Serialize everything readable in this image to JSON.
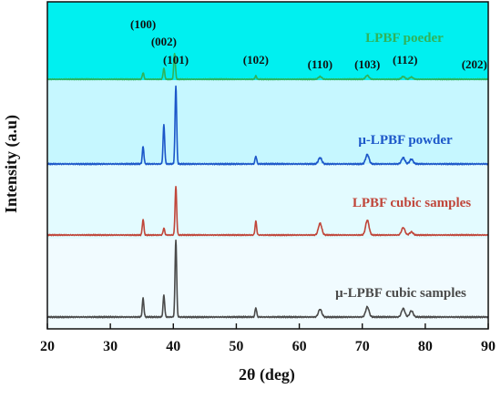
{
  "chart_data": {
    "type": "line",
    "title": "",
    "xlabel": "2θ (deg)",
    "ylabel": "Intensity (a.u)",
    "xlim": [
      20,
      90
    ],
    "xticks": [
      20,
      30,
      40,
      50,
      60,
      70,
      80,
      90
    ],
    "y_ticks_shown": false,
    "grid": false,
    "legend": "none; series names written next to each trace",
    "background_bands": [
      "#00f0f0",
      "#c6f7ff",
      "#e3fbff",
      "#f1fbff"
    ],
    "series": [
      {
        "name": "LPBF poeder",
        "color": "#2fb35a",
        "peaks": [
          {
            "x": 35.2,
            "height": 0.12
          },
          {
            "x": 38.5,
            "height": 0.2
          },
          {
            "x": 40.2,
            "height": 0.48
          },
          {
            "x": 53.1,
            "height": 0.06
          },
          {
            "x": 63.3,
            "height": 0.05
          },
          {
            "x": 70.8,
            "height": 0.07
          },
          {
            "x": 76.5,
            "height": 0.05
          },
          {
            "x": 77.8,
            "height": 0.04
          }
        ]
      },
      {
        "name": "μ-LPBF powder",
        "color": "#1c57c9",
        "peaks": [
          {
            "x": 35.2,
            "height": 0.22
          },
          {
            "x": 38.5,
            "height": 0.5
          },
          {
            "x": 40.4,
            "height": 1.0
          },
          {
            "x": 53.1,
            "height": 0.1
          },
          {
            "x": 63.3,
            "height": 0.08
          },
          {
            "x": 70.8,
            "height": 0.12
          },
          {
            "x": 76.5,
            "height": 0.08
          },
          {
            "x": 77.8,
            "height": 0.06
          }
        ]
      },
      {
        "name": "LPBF cubic samples",
        "color": "#c0463a",
        "peaks": [
          {
            "x": 35.2,
            "height": 0.25
          },
          {
            "x": 38.5,
            "height": 0.11
          },
          {
            "x": 40.4,
            "height": 0.78
          },
          {
            "x": 53.1,
            "height": 0.22
          },
          {
            "x": 63.3,
            "height": 0.19
          },
          {
            "x": 70.8,
            "height": 0.24
          },
          {
            "x": 76.5,
            "height": 0.12
          },
          {
            "x": 77.8,
            "height": 0.05
          }
        ]
      },
      {
        "name": "μ-LPBF cubic samples",
        "color": "#4a4a4a",
        "peaks": [
          {
            "x": 35.2,
            "height": 0.24
          },
          {
            "x": 38.5,
            "height": 0.28
          },
          {
            "x": 40.4,
            "height": 1.0
          },
          {
            "x": 53.1,
            "height": 0.12
          },
          {
            "x": 63.3,
            "height": 0.1
          },
          {
            "x": 70.8,
            "height": 0.13
          },
          {
            "x": 76.5,
            "height": 0.11
          },
          {
            "x": 77.8,
            "height": 0.08
          }
        ]
      }
    ],
    "peak_labels": [
      {
        "text": "(100)",
        "x": 35.2
      },
      {
        "text": "(002)",
        "x": 38.5
      },
      {
        "text": "(101)",
        "x": 40.4
      },
      {
        "text": "(102)",
        "x": 53.1
      },
      {
        "text": "(110)",
        "x": 63.3
      },
      {
        "text": "(103)",
        "x": 70.8
      },
      {
        "text": "(112)",
        "x": 76.8
      },
      {
        "text": "(202)",
        "x": 87.8
      }
    ]
  }
}
